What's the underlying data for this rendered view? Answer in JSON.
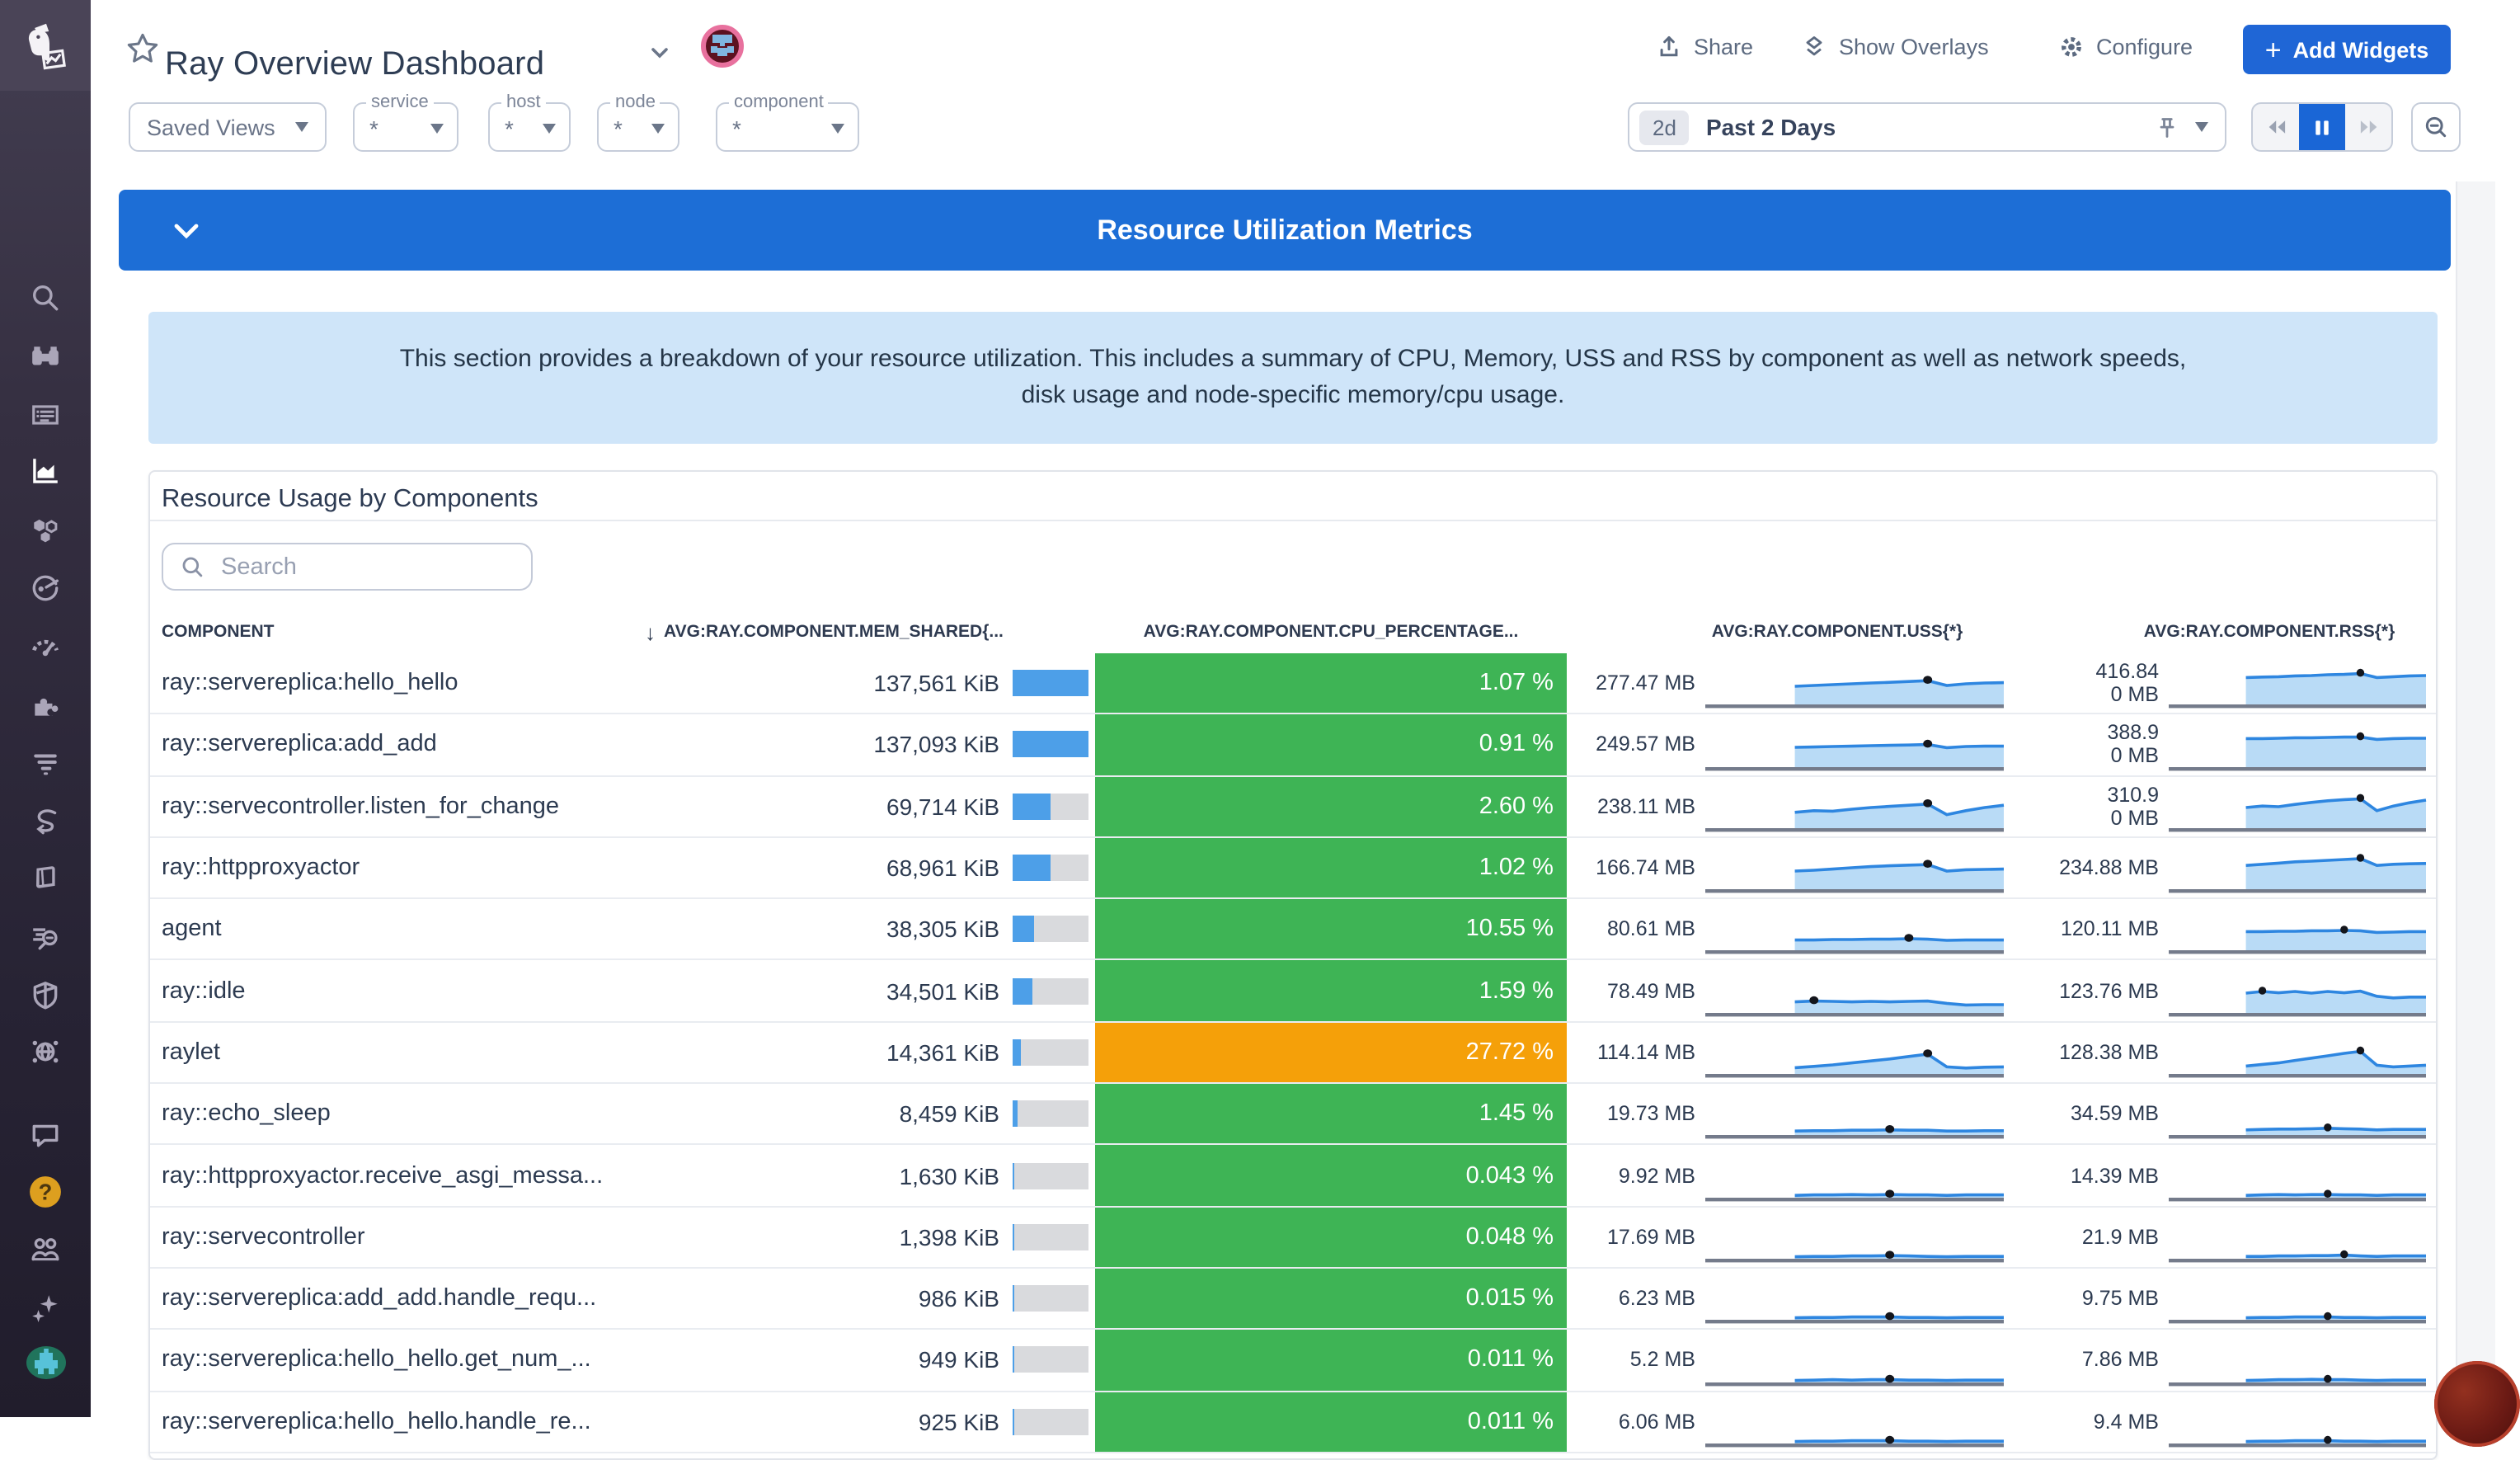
{
  "header": {
    "title": "Ray Overview Dashboard",
    "actions": [
      {
        "label": "Share",
        "icon": "share-icon"
      },
      {
        "label": "Show Overlays",
        "icon": "overlays-icon"
      },
      {
        "label": "Configure",
        "icon": "gear-icon"
      }
    ],
    "add_widgets_label": "Add Widgets",
    "saved_views_label": "Saved Views",
    "filters": [
      {
        "label": "service",
        "value": "*"
      },
      {
        "label": "host",
        "value": "*"
      },
      {
        "label": "node",
        "value": "*"
      },
      {
        "label": "component",
        "value": "*"
      }
    ],
    "time": {
      "range_short": "2d",
      "range_label": "Past 2 Days"
    }
  },
  "section": {
    "title": "Resource Utilization Metrics",
    "description": "This section provides a breakdown of your resource utilization. This includes a summary of CPU, Memory, USS and RSS by component as well as network speeds, disk usage and node-specific memory/cpu usage."
  },
  "panel": {
    "title": "Resource Usage by Components",
    "search_placeholder": "Search",
    "sort_indicator": "↓",
    "columns": [
      "COMPONENT",
      "AVG:RAY.COMPONENT.MEM_SHARED{...",
      "AVG:RAY.COMPONENT.CPU_PERCENTAGE...",
      "AVG:RAY.COMPONENT.USS{*}",
      "AVG:RAY.COMPONENT.RSS{*}"
    ]
  },
  "chart_data": {
    "type": "table",
    "title": "Resource Usage by Components",
    "columns": [
      "COMPONENT",
      "AVG:RAY.COMPONENT.MEM_SHARED{...",
      "AVG:RAY.COMPONENT.CPU_PERCENTAGE...",
      "AVG:RAY.COMPONENT.USS{*}",
      "AVG:RAY.COMPONENT.RSS{*}"
    ],
    "rows": [
      {
        "component": "ray::servereplica:hello_hello",
        "mem": "137,561 KiB",
        "mem_frac": 1.0,
        "cpu": "1.07 %",
        "cpu_level": "ok",
        "uss": "277.47 MB",
        "rss_lines": [
          "416.84",
          "0 MB"
        ],
        "uss_spark": [
          0.46,
          0.48,
          0.5,
          0.52,
          0.54,
          0.56,
          0.58,
          0.6,
          0.48,
          0.52,
          0.54,
          0.55
        ],
        "uss_dot": 7,
        "rss_spark": [
          0.68,
          0.69,
          0.7,
          0.72,
          0.73,
          0.75,
          0.76,
          0.78,
          0.68,
          0.7,
          0.72,
          0.73
        ],
        "rss_dot": 7
      },
      {
        "component": "ray::servereplica:add_add",
        "mem": "137,093 KiB",
        "mem_frac": 0.997,
        "cpu": "0.91 %",
        "cpu_level": "ok",
        "uss": "249.57 MB",
        "rss_lines": [
          "388.9",
          "0 MB"
        ],
        "uss_spark": [
          0.5,
          0.51,
          0.52,
          0.53,
          0.54,
          0.55,
          0.56,
          0.57,
          0.49,
          0.52,
          0.53,
          0.53
        ],
        "uss_dot": 7,
        "rss_spark": [
          0.72,
          0.72,
          0.73,
          0.74,
          0.74,
          0.75,
          0.76,
          0.76,
          0.7,
          0.72,
          0.73,
          0.73
        ],
        "rss_dot": 7
      },
      {
        "component": "ray::servecontroller.listen_for_change",
        "mem": "69,714 KiB",
        "mem_frac": 0.507,
        "cpu": "2.60 %",
        "cpu_level": "ok",
        "uss": "238.11 MB",
        "rss_lines": [
          "310.9",
          "0 MB"
        ],
        "uss_spark": [
          0.4,
          0.44,
          0.43,
          0.48,
          0.52,
          0.55,
          0.58,
          0.61,
          0.34,
          0.44,
          0.52,
          0.58
        ],
        "uss_dot": 7,
        "rss_spark": [
          0.52,
          0.56,
          0.54,
          0.6,
          0.65,
          0.69,
          0.72,
          0.74,
          0.44,
          0.56,
          0.64,
          0.71
        ],
        "rss_dot": 7
      },
      {
        "component": "ray::httpproxyactor",
        "mem": "68,961 KiB",
        "mem_frac": 0.501,
        "cpu": "1.02 %",
        "cpu_level": "ok",
        "uss": "166.74 MB",
        "rss_lines": [
          "234.88 MB"
        ],
        "uss_spark": [
          0.46,
          0.48,
          0.51,
          0.54,
          0.57,
          0.59,
          0.61,
          0.62,
          0.46,
          0.49,
          0.5,
          0.51
        ],
        "uss_dot": 7,
        "rss_spark": [
          0.6,
          0.63,
          0.66,
          0.69,
          0.71,
          0.73,
          0.75,
          0.77,
          0.6,
          0.63,
          0.64,
          0.65
        ],
        "rss_dot": 7
      },
      {
        "component": "agent",
        "mem": "38,305 KiB",
        "mem_frac": 0.278,
        "cpu": "10.55 %",
        "cpu_level": "ok",
        "uss": "80.61 MB",
        "rss_lines": [
          "120.11 MB"
        ],
        "uss_spark": [
          0.26,
          0.26,
          0.27,
          0.27,
          0.28,
          0.28,
          0.29,
          0.28,
          0.25,
          0.26,
          0.26,
          0.26
        ],
        "uss_dot": 6,
        "rss_spark": [
          0.47,
          0.47,
          0.48,
          0.48,
          0.49,
          0.49,
          0.5,
          0.49,
          0.45,
          0.46,
          0.47,
          0.47
        ],
        "rss_dot": 6
      },
      {
        "component": "ray::idle",
        "mem": "34,501 KiB",
        "mem_frac": 0.251,
        "cpu": "1.59 %",
        "cpu_level": "ok",
        "uss": "78.49 MB",
        "rss_lines": [
          "123.76 MB"
        ],
        "uss_spark": [
          0.28,
          0.3,
          0.29,
          0.28,
          0.29,
          0.28,
          0.29,
          0.3,
          0.24,
          0.2,
          0.21,
          0.21
        ],
        "uss_dot": 1,
        "rss_spark": [
          0.5,
          0.54,
          0.51,
          0.54,
          0.5,
          0.54,
          0.51,
          0.55,
          0.42,
          0.38,
          0.4,
          0.4
        ],
        "rss_dot": 1
      },
      {
        "component": "raylet",
        "mem": "14,361 KiB",
        "mem_frac": 0.104,
        "cpu": "27.72 %",
        "cpu_level": "warn",
        "uss": "114.14 MB",
        "rss_lines": [
          "128.38 MB"
        ],
        "uss_spark": [
          0.16,
          0.19,
          0.23,
          0.28,
          0.33,
          0.38,
          0.44,
          0.5,
          0.18,
          0.15,
          0.17,
          0.18
        ],
        "uss_dot": 7,
        "rss_spark": [
          0.2,
          0.24,
          0.28,
          0.34,
          0.4,
          0.46,
          0.52,
          0.57,
          0.22,
          0.18,
          0.2,
          0.22
        ],
        "rss_dot": 7
      },
      {
        "component": "ray::echo_sleep",
        "mem": "8,459 KiB",
        "mem_frac": 0.061,
        "cpu": "1.45 %",
        "cpu_level": "ok",
        "uss": "19.73 MB",
        "rss_lines": [
          "34.59 MB"
        ],
        "uss_spark": [
          0.1,
          0.11,
          0.11,
          0.12,
          0.12,
          0.13,
          0.12,
          0.12,
          0.1,
          0.1,
          0.11,
          0.11
        ],
        "uss_dot": 5,
        "rss_spark": [
          0.13,
          0.14,
          0.15,
          0.15,
          0.16,
          0.17,
          0.16,
          0.15,
          0.13,
          0.14,
          0.14,
          0.14
        ],
        "rss_dot": 5
      },
      {
        "component": "ray::httpproxyactor.receive_asgi_messa...",
        "mem": "1,630 KiB",
        "mem_frac": 0.013,
        "cpu": "0.043 %",
        "cpu_level": "ok",
        "uss": "9.92 MB",
        "rss_lines": [
          "14.39 MB"
        ],
        "uss_spark": [
          0.06,
          0.07,
          0.07,
          0.08,
          0.07,
          0.08,
          0.07,
          0.07,
          0.06,
          0.07,
          0.07,
          0.07
        ],
        "uss_dot": 5,
        "rss_spark": [
          0.06,
          0.07,
          0.08,
          0.07,
          0.08,
          0.08,
          0.07,
          0.07,
          0.06,
          0.07,
          0.07,
          0.07
        ],
        "rss_dot": 5
      },
      {
        "component": "ray::servecontroller",
        "mem": "1,398 KiB",
        "mem_frac": 0.01,
        "cpu": "0.048 %",
        "cpu_level": "ok",
        "uss": "17.69 MB",
        "rss_lines": [
          "21.9 MB"
        ],
        "uss_spark": [
          0.05,
          0.06,
          0.06,
          0.07,
          0.07,
          0.08,
          0.07,
          0.06,
          0.05,
          0.06,
          0.06,
          0.06
        ],
        "uss_dot": 5,
        "rss_spark": [
          0.06,
          0.06,
          0.07,
          0.07,
          0.08,
          0.08,
          0.09,
          0.07,
          0.06,
          0.07,
          0.07,
          0.07
        ],
        "rss_dot": 6
      },
      {
        "component": "ray::servereplica:add_add.handle_requ...",
        "mem": "986 KiB",
        "mem_frac": 0.007,
        "cpu": "0.015 %",
        "cpu_level": "ok",
        "uss": "6.23 MB",
        "rss_lines": [
          "9.75 MB"
        ],
        "uss_spark": [
          0.05,
          0.06,
          0.06,
          0.07,
          0.07,
          0.07,
          0.06,
          0.06,
          0.05,
          0.06,
          0.06,
          0.06
        ],
        "uss_dot": 5,
        "rss_spark": [
          0.05,
          0.06,
          0.06,
          0.07,
          0.07,
          0.07,
          0.06,
          0.06,
          0.05,
          0.06,
          0.06,
          0.06
        ],
        "rss_dot": 5
      },
      {
        "component": "ray::servereplica:hello_hello.get_num_...",
        "mem": "949 KiB",
        "mem_frac": 0.007,
        "cpu": "0.011 %",
        "cpu_level": "ok",
        "uss": "5.2 MB",
        "rss_lines": [
          "7.86 MB"
        ],
        "uss_spark": [
          0.05,
          0.06,
          0.07,
          0.06,
          0.07,
          0.07,
          0.06,
          0.06,
          0.05,
          0.06,
          0.06,
          0.06
        ],
        "uss_dot": 5,
        "rss_spark": [
          0.05,
          0.06,
          0.07,
          0.07,
          0.08,
          0.07,
          0.07,
          0.06,
          0.05,
          0.06,
          0.06,
          0.06
        ],
        "rss_dot": 5
      },
      {
        "component": "ray::servereplica:hello_hello.handle_re...",
        "mem": "925 KiB",
        "mem_frac": 0.007,
        "cpu": "0.011 %",
        "cpu_level": "ok",
        "uss": "6.06 MB",
        "rss_lines": [
          "9.4 MB"
        ],
        "uss_spark": [
          0.05,
          0.06,
          0.06,
          0.07,
          0.07,
          0.07,
          0.06,
          0.06,
          0.05,
          0.06,
          0.06,
          0.06
        ],
        "uss_dot": 5,
        "rss_spark": [
          0.05,
          0.06,
          0.06,
          0.07,
          0.07,
          0.07,
          0.06,
          0.06,
          0.05,
          0.06,
          0.06,
          0.06
        ],
        "rss_dot": 5
      }
    ]
  },
  "sidebar": {
    "help_glyph": "?",
    "items": [
      {
        "icon": "search-icon"
      },
      {
        "icon": "watchdog-icon"
      },
      {
        "icon": "dashboards-icon"
      },
      {
        "icon": "metrics-icon",
        "active": true
      },
      {
        "icon": "infrastructure-icon"
      },
      {
        "icon": "apm-icon"
      },
      {
        "icon": "gauge-icon"
      },
      {
        "icon": "integrations-icon"
      },
      {
        "icon": "logs-icon"
      },
      {
        "icon": "pipelines-icon"
      },
      {
        "icon": "notebooks-icon"
      },
      {
        "icon": "log-search-icon"
      },
      {
        "icon": "security-icon"
      },
      {
        "icon": "network-icon"
      },
      {
        "icon": "chat-icon"
      },
      {
        "icon": "help-icon"
      },
      {
        "icon": "org-users-icon"
      },
      {
        "icon": "ai-sparkles-icon"
      },
      {
        "icon": "user-avatar-icon"
      }
    ]
  },
  "colors": {
    "banner_blue": "#1d6ed6",
    "accent_blue": "#1f66d6",
    "ok_green": "#3eb455",
    "warn_orange": "#f5a009",
    "bar_blue": "#4d9fe8",
    "spark_fill": "#b9dbf6",
    "spark_stroke": "#2e86e0",
    "info_bg": "#cfe5f9"
  }
}
